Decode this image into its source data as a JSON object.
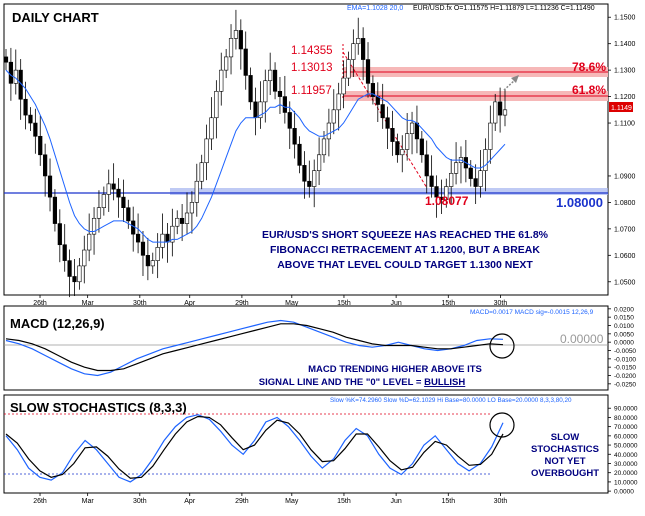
{
  "header": {
    "chart_title": "DAILY CHART",
    "ema_label": "EMA=1.1028 20,0",
    "quote": "EUR/USD.fx O=1.11575 H=1.11879 L=1.11236 C=1.11490"
  },
  "colors": {
    "up_candle": "#ffffff",
    "down_candle": "#000000",
    "ema": "#1e64ff",
    "fib_band": "#f6b8b8",
    "fib_text": "#e0001b",
    "support": "#1a33cc",
    "support_band": "#aab8f0",
    "annotation": "#000080",
    "macd": "#1e64ff",
    "signal": "#000000",
    "stoch_k": "#1e64ff",
    "stoch_d": "#000000"
  },
  "annotations": {
    "price_high": "1.14355",
    "fib_786_price": "1.13013",
    "fib_618_price": "1.11957",
    "price_low": "1.08077",
    "fib_786_label": "78.6%",
    "fib_618_label": "61.8%",
    "support_label": "1.08000",
    "last_price": "1.1149",
    "note_main_1": "EUR/USD'S SHORT SQUEEZE HAS REACHED THE 61.8%",
    "note_main_2": "FIBONACCI RETRACEMENT AT 1.1200, BUT A BREAK",
    "note_main_3": "ABOVE THAT LEVEL COULD TARGET 1.1300 NEXT"
  },
  "macd_panel": {
    "title": "MACD (12,26,9)",
    "readout": "MACD=0.0017 MACD sig=-0.0015  12,26,9",
    "zero_label": "0.00000",
    "note_1": "MACD TRENDING HIGHER ABOVE ITS",
    "note_2_prefix": "SIGNAL LINE AND THE \"0\" LEVEL = ",
    "note_2_bullish": "BULLISH"
  },
  "stoch_panel": {
    "title": "SLOW STOCHASTICS (8,3,3)",
    "readout": "Slow %K=74.2960  Slow %D=62.1029  Hi Base=80.0000  LO Base=20.0000   8,3,3,80,20",
    "note_1": "SLOW",
    "note_2": "STOCHASTICS",
    "note_3": "NOT YET",
    "note_4": "OVERBOUGHT"
  },
  "chart_data": [
    {
      "type": "candlestick",
      "title": "DAILY CHART",
      "symbol": "EUR/USD.fx",
      "x_tick_labels": [
        "26th",
        "Mar",
        "30th",
        "Apr",
        "29th",
        "May",
        "15th",
        "Jun",
        "15th",
        "30th"
      ],
      "y_tick_labels": [
        "1.1500",
        "1.1400",
        "1.1300",
        "1.1200",
        "1.1100",
        "1.0900",
        "1.0800",
        "1.0700",
        "1.0600",
        "1.0500"
      ],
      "ylim": [
        1.045,
        1.155
      ],
      "last_close": 1.1149,
      "price_path": [
        1.133,
        1.125,
        1.13,
        1.119,
        1.113,
        1.11,
        1.105,
        1.098,
        1.09,
        1.082,
        1.072,
        1.064,
        1.058,
        1.052,
        1.05,
        1.056,
        1.062,
        1.068,
        1.074,
        1.078,
        1.083,
        1.087,
        1.085,
        1.082,
        1.078,
        1.073,
        1.068,
        1.065,
        1.06,
        1.056,
        1.058,
        1.063,
        1.068,
        1.065,
        1.071,
        1.074,
        1.072,
        1.076,
        1.08,
        1.088,
        1.095,
        1.104,
        1.112,
        1.122,
        1.13,
        1.135,
        1.142,
        1.145,
        1.138,
        1.128,
        1.118,
        1.112,
        1.118,
        1.126,
        1.13,
        1.122,
        1.12,
        1.114,
        1.108,
        1.102,
        1.094,
        1.088,
        1.086,
        1.092,
        1.098,
        1.104,
        1.11,
        1.115,
        1.121,
        1.127,
        1.134,
        1.14,
        1.142,
        1.134,
        1.125,
        1.12,
        1.117,
        1.112,
        1.108,
        1.103,
        1.098,
        1.1,
        1.106,
        1.11,
        1.104,
        1.098,
        1.09,
        1.086,
        1.082,
        1.081,
        1.086,
        1.091,
        1.095,
        1.097,
        1.093,
        1.089,
        1.086,
        1.092,
        1.1,
        1.11,
        1.118,
        1.113,
        1.115
      ],
      "ema_path": [
        1.13,
        1.128,
        1.127,
        1.125,
        1.123,
        1.12,
        1.117,
        1.113,
        1.109,
        1.104,
        1.098,
        1.092,
        1.086,
        1.08,
        1.075,
        1.072,
        1.07,
        1.069,
        1.069,
        1.07,
        1.071,
        1.072,
        1.073,
        1.073,
        1.073,
        1.072,
        1.071,
        1.07,
        1.068,
        1.066,
        1.065,
        1.065,
        1.065,
        1.065,
        1.066,
        1.066,
        1.067,
        1.068,
        1.069,
        1.071,
        1.074,
        1.078,
        1.082,
        1.087,
        1.092,
        1.097,
        1.102,
        1.107,
        1.11,
        1.112,
        1.112,
        1.112,
        1.113,
        1.114,
        1.116,
        1.116,
        1.117,
        1.116,
        1.116,
        1.114,
        1.112,
        1.109,
        1.107,
        1.106,
        1.105,
        1.105,
        1.106,
        1.107,
        1.108,
        1.11,
        1.113,
        1.116,
        1.119,
        1.12,
        1.121,
        1.121,
        1.12,
        1.119,
        1.118,
        1.116,
        1.114,
        1.112,
        1.111,
        1.111,
        1.11,
        1.108,
        1.106,
        1.104,
        1.101,
        1.099,
        1.097,
        1.096,
        1.096,
        1.096,
        1.095,
        1.094,
        1.093,
        1.093,
        1.094,
        1.096,
        1.098,
        1.1,
        1.102
      ],
      "fib_levels": [
        {
          "label": "78.6%",
          "value": 1.13013
        },
        {
          "label": "61.8%",
          "value": 1.11957
        }
      ],
      "support_level": 1.08,
      "swing_high": 1.14355,
      "swing_low": 1.08077
    },
    {
      "type": "line",
      "title": "MACD (12,26,9)",
      "y_tick_labels": [
        "0.0200",
        "0.0150",
        "0.0100",
        "0.0050",
        "0.0000",
        "-0.0050",
        "-0.0100",
        "-0.0150",
        "-0.0200",
        "-0.0250"
      ],
      "ylim": [
        -0.0275,
        0.0205
      ],
      "series": [
        {
          "name": "MACD",
          "values": [
            0.001,
            -0.001,
            -0.004,
            -0.008,
            -0.012,
            -0.016,
            -0.019,
            -0.02,
            -0.018,
            -0.014,
            -0.01,
            -0.007,
            -0.004,
            -0.002,
            0.0,
            0.002,
            0.004,
            0.006,
            0.008,
            0.01,
            0.012,
            0.013,
            0.012,
            0.009,
            0.006,
            0.003,
            0.0,
            -0.002,
            -0.003,
            -0.002,
            0.0,
            -0.002,
            -0.004,
            -0.005,
            -0.004,
            -0.002,
            0.001,
            0.002,
            0.0017
          ]
        },
        {
          "name": "MACD sig",
          "values": [
            0.002,
            0.001,
            -0.001,
            -0.004,
            -0.008,
            -0.012,
            -0.015,
            -0.017,
            -0.017,
            -0.016,
            -0.013,
            -0.01,
            -0.007,
            -0.005,
            -0.003,
            -0.001,
            0.001,
            0.003,
            0.005,
            0.007,
            0.009,
            0.011,
            0.011,
            0.01,
            0.008,
            0.006,
            0.003,
            0.001,
            -0.001,
            -0.002,
            -0.002,
            -0.002,
            -0.003,
            -0.004,
            -0.004,
            -0.003,
            -0.002,
            -0.001,
            -0.0015
          ]
        }
      ]
    },
    {
      "type": "line",
      "title": "SLOW STOCHASTICS (8,3,3)",
      "y_tick_labels": [
        "90.0000",
        "80.0000",
        "70.0000",
        "60.0000",
        "50.0000",
        "40.0000",
        "30.0000",
        "20.0000",
        "10.0000",
        "0.0000"
      ],
      "ylim": [
        0,
        100
      ],
      "hi_base": 80,
      "lo_base": 20,
      "series": [
        {
          "name": "Slow %K",
          "values": [
            60,
            45,
            25,
            15,
            12,
            20,
            40,
            55,
            45,
            30,
            15,
            10,
            18,
            35,
            55,
            70,
            80,
            83,
            78,
            65,
            50,
            40,
            55,
            75,
            80,
            70,
            55,
            38,
            25,
            35,
            55,
            68,
            60,
            40,
            25,
            18,
            30,
            50,
            60,
            45,
            30,
            22,
            30,
            48,
            74.3
          ]
        },
        {
          "name": "Slow %D",
          "values": [
            62,
            52,
            35,
            22,
            15,
            18,
            30,
            47,
            48,
            38,
            24,
            14,
            15,
            27,
            45,
            62,
            75,
            81,
            80,
            72,
            58,
            45,
            50,
            66,
            77,
            74,
            62,
            45,
            32,
            33,
            46,
            62,
            62,
            48,
            33,
            23,
            26,
            42,
            54,
            50,
            38,
            28,
            29,
            40,
            62.1
          ]
        }
      ]
    }
  ]
}
